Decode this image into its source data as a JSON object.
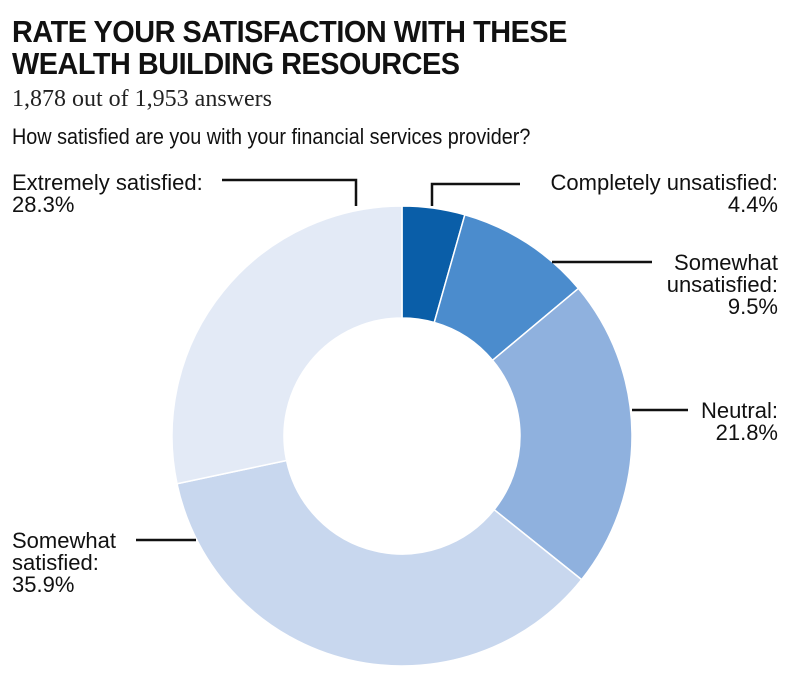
{
  "title_line1": "RATE YOUR SATISFACTION WITH THESE",
  "title_line2": "WEALTH BUILDING RESOURCES",
  "subtitle": "1,878 out of 1,953 answers",
  "chart_data": {
    "type": "pie",
    "donut": true,
    "title": "How satisfied are you with your financial services provider?",
    "unit": "%",
    "slices": [
      {
        "name": "Completely unsatisfied",
        "label_lines": [
          "Completely unsatisfied:"
        ],
        "value_text": "4.4%",
        "value": 4.4,
        "color": "#0a5ea8"
      },
      {
        "name": "Somewhat unsatisfied",
        "label_lines": [
          "Somewhat",
          "unsatisfied:"
        ],
        "value_text": "9.5%",
        "value": 9.5,
        "color": "#4b8ccd"
      },
      {
        "name": "Neutral",
        "label_lines": [
          "Neutral:"
        ],
        "value_text": "21.8%",
        "value": 21.8,
        "color": "#8fb1de"
      },
      {
        "name": "Somewhat satisfied",
        "label_lines": [
          "Somewhat",
          "satisfied:"
        ],
        "value_text": "35.9%",
        "value": 35.9,
        "color": "#c8d7ee"
      },
      {
        "name": "Extremely satisfied",
        "label_lines": [
          "Extremely satisfied:"
        ],
        "value_text": "28.3%",
        "value": 28.3,
        "color": "#e3eaf6"
      }
    ]
  }
}
